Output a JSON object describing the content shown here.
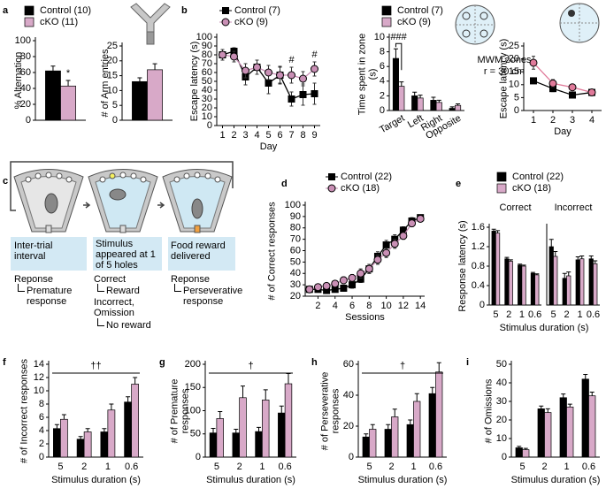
{
  "panel_labels": [
    "a",
    "b",
    "c",
    "d",
    "e",
    "f",
    "g",
    "h",
    "i"
  ],
  "diagram": {
    "steps": [
      {
        "label": "Inter-trial interval",
        "outcomes": [
          {
            "name": "Reponse",
            "result": "Premature response"
          }
        ]
      },
      {
        "label": "Stimulus appeared at 1 of 5 holes",
        "outcomes": [
          {
            "name": "Correct",
            "result": "Reward"
          },
          {
            "name": "Incorrect, Omission",
            "result": "No reward"
          }
        ]
      },
      {
        "label": "Food reward delivered",
        "outcomes": [
          {
            "name": "Reponse",
            "result": "Perseverative response"
          }
        ]
      }
    ]
  },
  "chart_data": [
    {
      "type": "bar",
      "ylabel": "% Alternation",
      "categories": [
        null
      ],
      "ylim": [
        0,
        100
      ],
      "yticks": [
        0,
        20,
        40,
        60,
        80,
        100
      ],
      "legend": "above",
      "series": [
        {
          "name": "Control (10)",
          "color": "#000000",
          "values": [
            62
          ],
          "errors": [
            6
          ]
        },
        {
          "name": "cKO (11)",
          "color": "#d8a9c8",
          "values": [
            43
          ],
          "errors": [
            7
          ]
        }
      ],
      "annotations": [
        {
          "text": "*"
        }
      ]
    },
    {
      "type": "bar",
      "ylabel": "# of Arm entries",
      "categories": [
        null
      ],
      "ylim": [
        0,
        25
      ],
      "yticks": [
        0,
        5,
        10,
        15,
        20,
        25
      ],
      "series": [
        {
          "color": "#000000",
          "values": [
            13
          ],
          "errors": [
            1.3
          ]
        },
        {
          "color": "#d8a9c8",
          "values": [
            17
          ],
          "errors": [
            2
          ]
        }
      ]
    },
    {
      "type": "line",
      "ylabel": "Escape latency (s)",
      "xlabel": "Day",
      "x": [
        1,
        2,
        3,
        4,
        5,
        6,
        7,
        8,
        9
      ],
      "xlim": [
        0.5,
        9.5
      ],
      "xticks": [
        1,
        2,
        3,
        4,
        5,
        6,
        7,
        8,
        9
      ],
      "ylim": [
        0,
        100
      ],
      "yticks": [
        0,
        10,
        20,
        30,
        40,
        50,
        60,
        70,
        80,
        90,
        100
      ],
      "legend": "above",
      "series": [
        {
          "name": "Control (7)",
          "color": "#000000",
          "marker": "square",
          "values": [
            80,
            84,
            55,
            66,
            48,
            57,
            30,
            35,
            36
          ],
          "errors": [
            6,
            4,
            9,
            8,
            12,
            10,
            8,
            12,
            12
          ]
        },
        {
          "name": "cKO (9)",
          "color": "#c98fb5",
          "marker": "circle",
          "values": [
            80,
            78,
            62,
            66,
            60,
            57,
            57,
            53,
            64
          ],
          "errors": [
            6,
            6,
            8,
            8,
            8,
            9,
            9,
            8,
            8
          ]
        }
      ],
      "annotations": [
        {
          "text": "#",
          "x": 7
        },
        {
          "text": "#",
          "x": 9
        }
      ]
    },
    {
      "type": "bar",
      "ylabel": "Time spent in zone (s)",
      "categories": [
        "Target",
        "Left",
        "Right",
        "Opposite"
      ],
      "label_rotation": -30,
      "ylim": [
        0,
        10
      ],
      "yticks": [
        0,
        2,
        4,
        6,
        8,
        10
      ],
      "legend": "above",
      "note": "MWM zones",
      "subnote": "r = 30 cm",
      "series": [
        {
          "name": "Control (7)",
          "color": "#000000",
          "values": [
            7.1,
            2.0,
            1.4,
            0.3
          ],
          "errors": [
            1.3,
            0.5,
            0.4,
            0.2
          ]
        },
        {
          "name": "cKO (9)",
          "color": "#d8a9c8",
          "values": [
            3.3,
            1.7,
            1.1,
            0.7
          ],
          "errors": [
            0.6,
            0.4,
            0.3,
            0.2
          ]
        }
      ],
      "annotations": [
        {
          "text": "###"
        }
      ]
    },
    {
      "type": "line",
      "ylabel": "Escape latency (s)",
      "xlabel": "Day",
      "x": [
        1,
        2,
        3,
        4
      ],
      "xlim": [
        0.5,
        4.5
      ],
      "xticks": [
        1,
        2,
        3,
        4
      ],
      "ylim": [
        0,
        25
      ],
      "yticks": [
        0,
        5,
        10,
        15,
        20,
        25
      ],
      "series": [
        {
          "color": "#000000",
          "marker": "square",
          "values": [
            11.5,
            8.5,
            6,
            7
          ],
          "errors": [
            1,
            1.2,
            0.8,
            1
          ]
        },
        {
          "color": "#e07a9a",
          "marker": "circle",
          "values": [
            18.5,
            10.5,
            9,
            7
          ],
          "errors": [
            2.5,
            1.5,
            1.2,
            1
          ]
        }
      ]
    },
    {
      "type": "line",
      "ylabel": "# of Correct responses",
      "xlabel": "Sessions",
      "x": [
        1,
        2,
        3,
        4,
        5,
        6,
        7,
        8,
        9,
        10,
        11,
        12,
        13,
        14
      ],
      "xlim": [
        0.5,
        14.5
      ],
      "xticks": [
        2,
        4,
        6,
        8,
        10,
        12,
        14
      ],
      "ylim": [
        20,
        100
      ],
      "yticks": [
        20,
        30,
        40,
        50,
        60,
        70,
        80,
        90,
        100
      ],
      "legend": "above",
      "series": [
        {
          "name": "Control (22)",
          "color": "#000000",
          "marker": "square",
          "values": [
            26,
            26,
            25,
            26,
            27,
            30,
            35,
            44,
            55,
            65,
            70,
            78,
            86,
            89
          ],
          "errors": [
            1,
            1,
            1,
            2,
            2,
            3,
            3,
            4,
            4,
            4,
            4,
            3,
            3,
            2
          ]
        },
        {
          "name": "cKO (18)",
          "color": "#c98fb5",
          "marker": "circle",
          "values": [
            26,
            28,
            29,
            31,
            34,
            36,
            40,
            44,
            52,
            58,
            66,
            73,
            84,
            88
          ],
          "errors": [
            1,
            1,
            2,
            2,
            3,
            3,
            4,
            4,
            4,
            4,
            4,
            3,
            3,
            2
          ]
        }
      ]
    },
    {
      "type": "bar",
      "title": "Correct",
      "ylabel": "Response latency (s)",
      "xlabel": "Stimulus duration (s)",
      "categories": [
        "5",
        "2",
        "1",
        "0.6"
      ],
      "ylim": [
        0,
        1.6
      ],
      "yticks": [
        0,
        0.4,
        0.8,
        1.2,
        1.6
      ],
      "legend": "above",
      "series": [
        {
          "name": "Control (22)",
          "color": "#000000",
          "values": [
            1.52,
            0.95,
            0.82,
            0.65
          ],
          "errors": [
            0.04,
            0.03,
            0.02,
            0.02
          ]
        },
        {
          "name": "cKO (18)",
          "color": "#d8a9c8",
          "values": [
            1.48,
            0.9,
            0.8,
            0.62
          ],
          "errors": [
            0.05,
            0.03,
            0.02,
            0.02
          ]
        }
      ]
    },
    {
      "type": "bar",
      "title": "Incorrect",
      "categories": [
        "5",
        "2",
        "1",
        "0.6"
      ],
      "ylim": [
        0,
        1.6
      ],
      "series": [
        {
          "color": "#000000",
          "values": [
            1.2,
            0.55,
            0.93,
            0.95
          ],
          "errors": [
            0.15,
            0.1,
            0.06,
            0.06
          ]
        },
        {
          "color": "#d8a9c8",
          "values": [
            1.0,
            0.6,
            0.95,
            0.85
          ],
          "errors": [
            0.1,
            0.08,
            0.06,
            0.06
          ]
        }
      ]
    },
    {
      "type": "bar",
      "ylabel": "# of Incorrect responses",
      "xlabel": "Stimulus duration (s)",
      "categories": [
        "5",
        "2",
        "1",
        "0.6"
      ],
      "ylim": [
        0,
        14
      ],
      "yticks": [
        0,
        2,
        4,
        6,
        8,
        10,
        12,
        14
      ],
      "series": [
        {
          "color": "#000000",
          "values": [
            4.3,
            2.7,
            3.8,
            8.3
          ],
          "errors": [
            0.6,
            0.4,
            0.5,
            0.8
          ]
        },
        {
          "color": "#d8a9c8",
          "values": [
            5.7,
            3.8,
            7.1,
            11
          ],
          "errors": [
            0.7,
            0.5,
            0.9,
            1
          ]
        }
      ],
      "annotations": [
        {
          "text": "††"
        }
      ]
    },
    {
      "type": "bar",
      "ylabel": "# of Premature responses",
      "xlabel": "Stimulus duration (s)",
      "categories": [
        "5",
        "2",
        "1",
        "0.6"
      ],
      "ylim": [
        0,
        200
      ],
      "yticks": [
        0,
        50,
        100,
        150,
        200
      ],
      "series": [
        {
          "color": "#000000",
          "values": [
            52,
            52,
            55,
            95
          ],
          "errors": [
            10,
            8,
            9,
            15
          ]
        },
        {
          "color": "#d8a9c8",
          "values": [
            83,
            128,
            123,
            158
          ],
          "errors": [
            15,
            25,
            22,
            22
          ]
        }
      ],
      "annotations": [
        {
          "text": "†"
        }
      ]
    },
    {
      "type": "bar",
      "ylabel": "# of Perseverative responses",
      "xlabel": "Stimulus duration (s)",
      "categories": [
        "5",
        "2",
        "1",
        "0.6"
      ],
      "ylim": [
        0,
        60
      ],
      "yticks": [
        0,
        20,
        40,
        60
      ],
      "series": [
        {
          "color": "#000000",
          "values": [
            13,
            18,
            21,
            41
          ],
          "errors": [
            2,
            3,
            3,
            4
          ]
        },
        {
          "color": "#d8a9c8",
          "values": [
            18,
            26,
            36,
            55
          ],
          "errors": [
            3,
            5,
            5,
            6
          ]
        }
      ],
      "annotations": [
        {
          "text": "†"
        }
      ]
    },
    {
      "type": "bar",
      "ylabel": "# of Omissions",
      "xlabel": "Stimulus duration (s)",
      "categories": [
        "5",
        "2",
        "1",
        "0.6"
      ],
      "ylim": [
        0,
        50
      ],
      "yticks": [
        0,
        10,
        20,
        30,
        40,
        50
      ],
      "series": [
        {
          "color": "#000000",
          "values": [
            5,
            26,
            32,
            42
          ],
          "errors": [
            0.8,
            1.5,
            2,
            2.5
          ]
        },
        {
          "color": "#d8a9c8",
          "values": [
            4,
            24,
            27,
            33
          ],
          "errors": [
            0.7,
            2,
            1.5,
            2
          ]
        }
      ]
    }
  ]
}
